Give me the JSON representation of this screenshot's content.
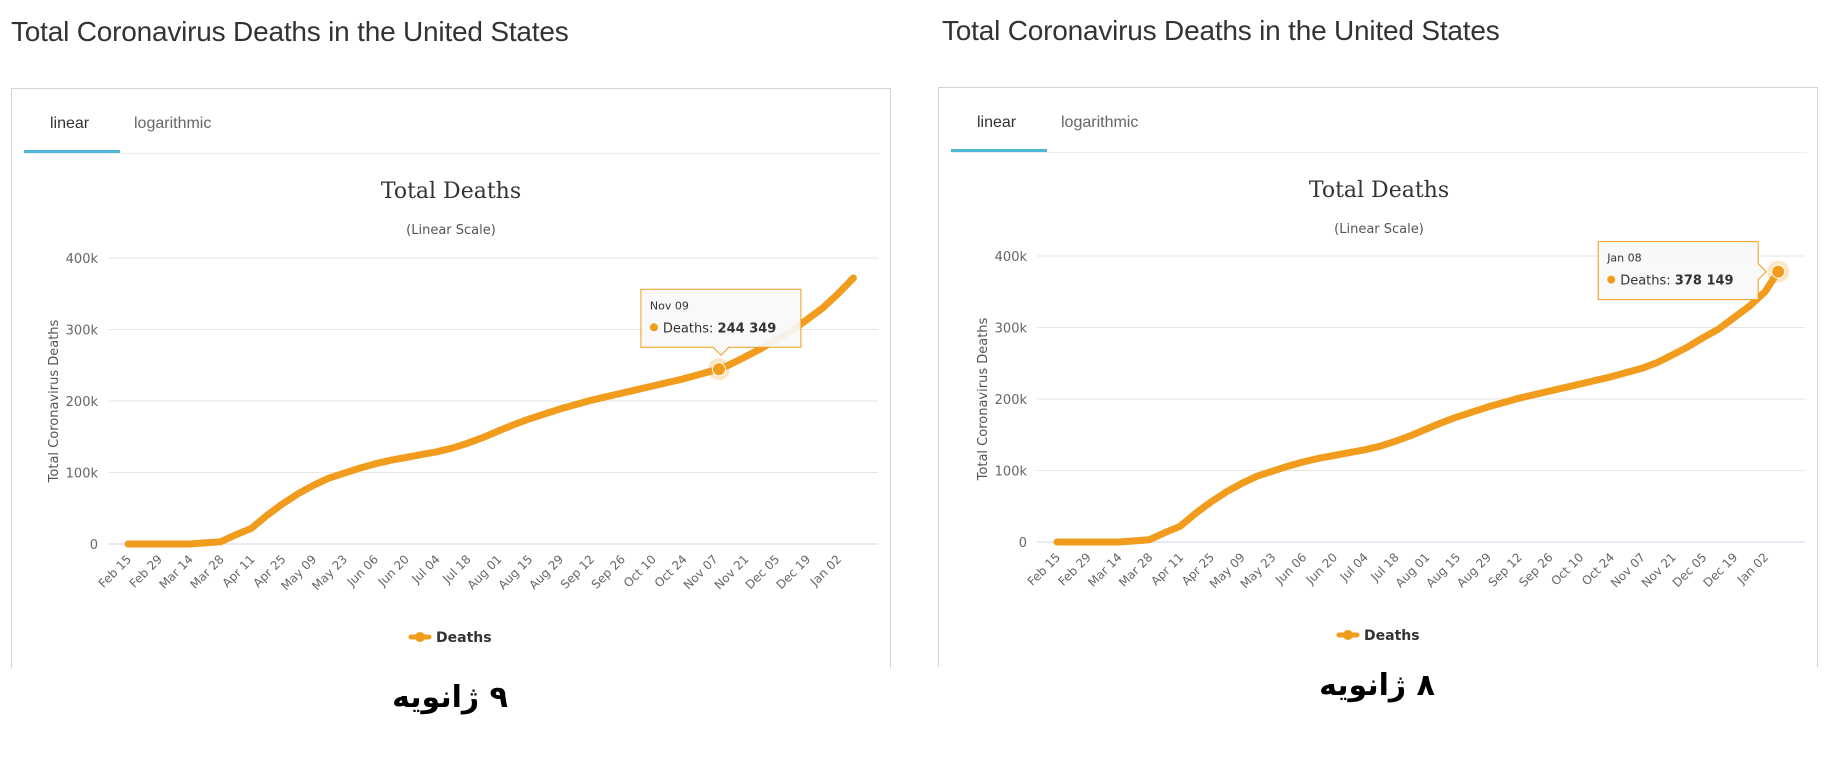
{
  "panels": [
    {
      "page_title": "Total Coronavirus Deaths in the United States",
      "tabs": [
        {
          "label": "linear",
          "active": true
        },
        {
          "label": "logarithmic",
          "active": false
        }
      ],
      "caption": "۹ ژانویه",
      "tooltip": {
        "date": "Nov 09",
        "series": "Deaths",
        "label": "Deaths: ",
        "value_text": "244 349",
        "value": 244349,
        "x_index_day": 268
      }
    },
    {
      "page_title": "Total Coronavirus Deaths in the United States",
      "tabs": [
        {
          "label": "linear",
          "active": true
        },
        {
          "label": "logarithmic",
          "active": false
        }
      ],
      "caption": "۸ ژانویه",
      "tooltip": {
        "date": "Jan 08",
        "series": "Deaths",
        "label": "Deaths: ",
        "value_text": "378 149",
        "value": 378149,
        "x_index_day": 328
      }
    }
  ],
  "colors": {
    "series": "#f19c1d",
    "tab_accent": "#4fb6d6",
    "grid": "#e6e6e6",
    "axis_text": "#666666",
    "title_text": "#333333"
  },
  "chart_data": [
    {
      "type": "line",
      "title": "Total Deaths",
      "subtitle": "(Linear Scale)",
      "xlabel": "",
      "ylabel": "Total Coronavirus Deaths",
      "ylim": [
        0,
        400000
      ],
      "yticks": [
        0,
        100000,
        200000,
        300000,
        400000
      ],
      "ytick_labels": [
        "0",
        "100k",
        "200k",
        "300k",
        "400k"
      ],
      "xtick_labels": [
        "Feb 15",
        "Feb 29",
        "Mar 14",
        "Mar 28",
        "Apr 11",
        "Apr 25",
        "May 09",
        "May 23",
        "Jun 06",
        "Jun 20",
        "Jul 04",
        "Jul 18",
        "Aug 01",
        "Aug 15",
        "Aug 29",
        "Sep 12",
        "Sep 26",
        "Oct 10",
        "Oct 24",
        "Nov 07",
        "Nov 21",
        "Dec 05",
        "Dec 19",
        "Jan 02"
      ],
      "x_days_since_feb15": [
        0,
        14,
        28,
        42,
        49,
        56,
        63,
        70,
        77,
        84,
        91,
        98,
        105,
        112,
        119,
        126,
        133,
        140,
        147,
        154,
        161,
        168,
        175,
        182,
        189,
        196,
        203,
        210,
        217,
        224,
        231,
        238,
        245,
        252,
        259,
        266,
        268,
        273,
        280,
        287,
        294,
        301,
        308,
        315,
        322,
        329
      ],
      "series": [
        {
          "name": "Deaths",
          "values": [
            0,
            1,
            60,
            3100,
            13000,
            22000,
            40000,
            56000,
            70000,
            82000,
            92000,
            99000,
            106000,
            112000,
            117000,
            121000,
            125000,
            129000,
            134000,
            141000,
            149000,
            158000,
            167000,
            175000,
            182000,
            189000,
            195000,
            201000,
            206000,
            211000,
            216000,
            221000,
            226000,
            231000,
            237000,
            243000,
            244349,
            251000,
            262000,
            273000,
            286000,
            298000,
            314000,
            330000,
            350000,
            372000
          ]
        }
      ],
      "legend": {
        "entries": [
          "Deaths"
        ],
        "position": "bottom-center"
      },
      "grid": true
    },
    {
      "type": "line",
      "title": "Total Deaths",
      "subtitle": "(Linear Scale)",
      "xlabel": "",
      "ylabel": "Total Coronavirus Deaths",
      "ylim": [
        0,
        400000
      ],
      "yticks": [
        0,
        100000,
        200000,
        300000,
        400000
      ],
      "ytick_labels": [
        "0",
        "100k",
        "200k",
        "300k",
        "400k"
      ],
      "xtick_labels": [
        "Feb 15",
        "Feb 29",
        "Mar 14",
        "Mar 28",
        "Apr 11",
        "Apr 25",
        "May 09",
        "May 23",
        "Jun 06",
        "Jun 20",
        "Jul 04",
        "Jul 18",
        "Aug 01",
        "Aug 15",
        "Aug 29",
        "Sep 12",
        "Sep 26",
        "Oct 10",
        "Oct 24",
        "Nov 07",
        "Nov 21",
        "Dec 05",
        "Dec 19",
        "Jan 02"
      ],
      "x_days_since_feb15": [
        0,
        14,
        28,
        42,
        49,
        56,
        63,
        70,
        77,
        84,
        91,
        98,
        105,
        112,
        119,
        126,
        133,
        140,
        147,
        154,
        161,
        168,
        175,
        182,
        189,
        196,
        203,
        210,
        217,
        224,
        231,
        238,
        245,
        252,
        259,
        266,
        273,
        280,
        287,
        294,
        301,
        308,
        315,
        322,
        328
      ],
      "series": [
        {
          "name": "Deaths",
          "values": [
            0,
            1,
            60,
            3100,
            13000,
            22000,
            40000,
            56000,
            70000,
            82000,
            92000,
            99000,
            106000,
            112000,
            117000,
            121000,
            125000,
            129000,
            134000,
            141000,
            149000,
            158000,
            167000,
            175000,
            182000,
            189000,
            195000,
            201000,
            206000,
            211000,
            216000,
            221000,
            226000,
            231000,
            237000,
            243000,
            251000,
            262000,
            273000,
            286000,
            298000,
            314000,
            330000,
            350000,
            378149
          ]
        }
      ],
      "legend": {
        "entries": [
          "Deaths"
        ],
        "position": "bottom-center"
      },
      "grid": true
    }
  ]
}
